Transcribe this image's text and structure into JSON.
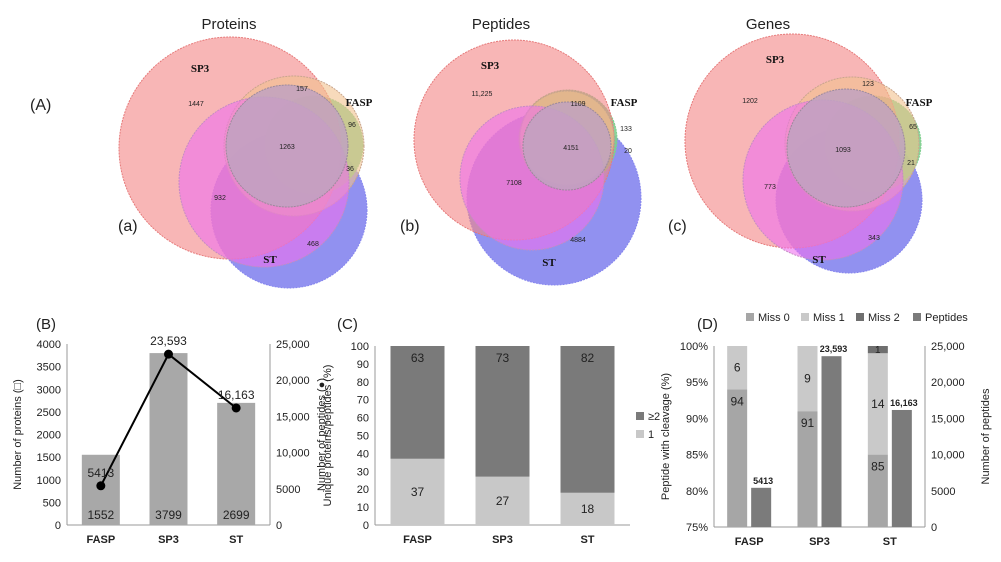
{
  "panel_labels": {
    "A": "(A)",
    "a": "(a)",
    "b": "(b)",
    "c": "(c)",
    "B": "(B)",
    "C": "(C)",
    "D": "(D)"
  },
  "venns": [
    {
      "title": "Proteins",
      "set_labels": [
        "SP3",
        "FASP",
        "ST"
      ],
      "regions": {
        "sp3_only": "1447",
        "sp3_fasp": "157",
        "fasp_only": "96",
        "center": "1263",
        "fasp_st": "36",
        "sp3_st": "932",
        "st_only": "468"
      }
    },
    {
      "title": "Peptides",
      "set_labels": [
        "SP3",
        "FASP",
        "ST"
      ],
      "regions": {
        "sp3_only": "11,225",
        "sp3_fasp": "1109",
        "fasp_only": "133",
        "center": "4151",
        "fasp_st": "20",
        "sp3_st": "7108",
        "st_only": "4884"
      }
    },
    {
      "title": "Genes",
      "set_labels": [
        "SP3",
        "FASP",
        "ST"
      ],
      "regions": {
        "sp3_only": "1202",
        "sp3_fasp": "123",
        "fasp_only": "65",
        "center": "1093",
        "fasp_st": "21",
        "sp3_st": "773",
        "st_only": "343"
      }
    }
  ],
  "chart_data": [
    {
      "type": "bar",
      "panel": "B",
      "categories": [
        "FASP",
        "SP3",
        "ST"
      ],
      "series": [
        {
          "name": "Number of proteins",
          "kind": "bar",
          "axis": "left",
          "values": [
            1552,
            3799,
            2699
          ],
          "labels": [
            "1552",
            "3799",
            "2699"
          ]
        },
        {
          "name": "Number of peptides",
          "kind": "line",
          "axis": "right",
          "values": [
            5413,
            23593,
            16163
          ],
          "labels": [
            "5413",
            "23,593",
            "16,163"
          ]
        }
      ],
      "ylabel": "Number of proteins (□)",
      "y2label": "Number of peptides (●)",
      "ylim": [
        0,
        4000
      ],
      "yticks": [
        "0",
        "500",
        "1000",
        "1500",
        "2000",
        "2500",
        "3000",
        "3500",
        "4000"
      ],
      "y2lim": [
        0,
        25000
      ],
      "y2ticks": [
        "0",
        "5000",
        "10,000",
        "15,000",
        "20,000",
        "25,000"
      ]
    },
    {
      "type": "bar",
      "panel": "C",
      "stacked": true,
      "categories": [
        "FASP",
        "SP3",
        "ST"
      ],
      "series": [
        {
          "name": "1",
          "values": [
            37,
            27,
            18
          ],
          "color": "#c8c8c8"
        },
        {
          "name": "≥2",
          "values": [
            63,
            73,
            82
          ],
          "color": "#7a7a7a"
        }
      ],
      "ylabel": "Unique proteins/peptides (%)",
      "ylim": [
        0,
        100
      ],
      "yticks": [
        "0",
        "10",
        "20",
        "30",
        "40",
        "50",
        "60",
        "70",
        "80",
        "90",
        "100"
      ]
    },
    {
      "type": "bar",
      "panel": "D",
      "stacked": true,
      "categories": [
        "FASP",
        "SP3",
        "ST"
      ],
      "series": [
        {
          "name": "Miss 0",
          "values": [
            94,
            91,
            85
          ],
          "color": "#a6a6a6"
        },
        {
          "name": "Miss 1",
          "values": [
            6,
            9,
            14
          ],
          "color": "#c9c9c9"
        },
        {
          "name": "Miss 2",
          "values": [
            0,
            0,
            1
          ],
          "color": "#6f6f6f"
        },
        {
          "name": "Peptides",
          "axis": "right",
          "values": [
            5413,
            23593,
            16163
          ],
          "labels": [
            "5413",
            "23,593",
            "16,163"
          ],
          "color": "#7b7b7b"
        }
      ],
      "ylabel": "Peptide with cleavage (%)",
      "y2label": "Number of peptides",
      "ylim": [
        75,
        100
      ],
      "yticks": [
        "75%",
        "80%",
        "85%",
        "90%",
        "95%",
        "100%"
      ],
      "y2lim": [
        0,
        25000
      ],
      "y2ticks": [
        "0",
        "5000",
        "10,000",
        "15,000",
        "20,000",
        "25,000"
      ]
    }
  ],
  "colors": {
    "sp3": "#f48585",
    "fasp": "#7fcf8f",
    "st": "#8585ee",
    "bar_B": "#a8a8a8"
  }
}
